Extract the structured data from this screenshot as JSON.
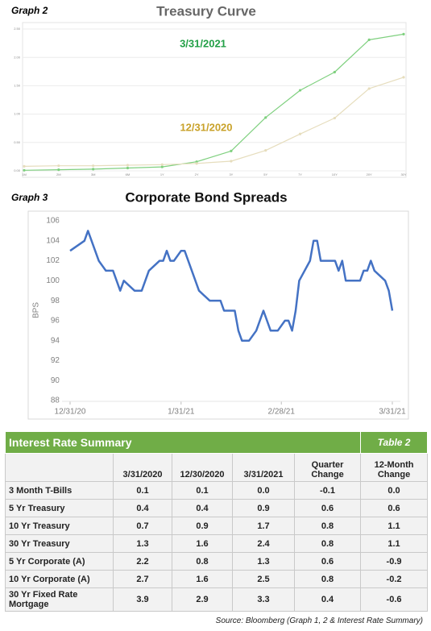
{
  "chart_data": [
    {
      "type": "line",
      "label": "Graph 2",
      "title": "Treasury Curve",
      "categories": [
        "1M",
        "2M",
        "3M",
        "6M",
        "1Y",
        "2Y",
        "3Y",
        "5Y",
        "7Y",
        "10Y",
        "20Y",
        "30Y"
      ],
      "series": [
        {
          "name": "3/31/2021",
          "color": "#7fd07f",
          "label_color": "#23a047",
          "values": [
            0.01,
            0.02,
            0.03,
            0.05,
            0.07,
            0.16,
            0.35,
            0.94,
            1.42,
            1.74,
            2.31,
            2.41
          ]
        },
        {
          "name": "12/31/2020",
          "color": "#e6ddbd",
          "label_color": "#c9a22a",
          "values": [
            0.08,
            0.09,
            0.09,
            0.1,
            0.11,
            0.13,
            0.17,
            0.36,
            0.65,
            0.93,
            1.45,
            1.65
          ]
        }
      ],
      "ylim": [
        0,
        2.6
      ],
      "yticks": [
        {
          "value": 0,
          "label": "0.00"
        },
        {
          "value": 0.5,
          "label": "0.50"
        },
        {
          "value": 1,
          "label": "1.00"
        },
        {
          "value": 1.5,
          "label": "1.50"
        },
        {
          "value": 2,
          "label": "2.00"
        },
        {
          "value": 2.5,
          "label": "2.50"
        }
      ],
      "grid": true
    },
    {
      "type": "line",
      "label": "Graph 3",
      "title": "Corporate Bond Spreads",
      "y_label": "BPS",
      "x": [
        "12/31/20",
        "1/4/21",
        "1/5/21",
        "1/8/21",
        "1/10/21",
        "1/12/21",
        "1/14/21",
        "1/15/21",
        "1/18/21",
        "1/20/21",
        "1/22/21",
        "1/25/21",
        "1/26/21",
        "1/27/21",
        "1/28/21",
        "1/29/21",
        "1/31/21",
        "2/1/21",
        "2/3/21",
        "2/5/21",
        "2/8/21",
        "2/11/21",
        "2/12/21",
        "2/15/21",
        "2/16/21",
        "2/17/21",
        "2/19/21",
        "2/21/21",
        "2/23/21",
        "2/25/21",
        "2/27/21",
        "3/1/21",
        "3/2/21",
        "3/3/21",
        "3/4/21",
        "3/5/21",
        "3/8/21",
        "3/9/21",
        "3/10/21",
        "3/11/21",
        "3/15/21",
        "3/16/21",
        "3/17/21",
        "3/18/21",
        "3/22/21",
        "3/23/21",
        "3/24/21",
        "3/25/21",
        "3/26/21",
        "3/29/21",
        "3/30/21",
        "3/31/21"
      ],
      "values": [
        103,
        104,
        105,
        102,
        101,
        101,
        99,
        100,
        99,
        99,
        101,
        102,
        102,
        103,
        102,
        102,
        103,
        103,
        101,
        99,
        98,
        98,
        97,
        97,
        95,
        94,
        94,
        95,
        97,
        95,
        95,
        96,
        96,
        95,
        97,
        100,
        102,
        104,
        104,
        102,
        102,
        101,
        102,
        100,
        100,
        101,
        101,
        102,
        101,
        100,
        99,
        97
      ],
      "color": "#4472c4",
      "xlim": [
        "12/31/20",
        "3/31/21"
      ],
      "xticks": [
        "12/31/20",
        "1/31/21",
        "2/28/21",
        "3/31/21"
      ],
      "ylim": [
        88,
        106
      ],
      "yticks": [
        88,
        90,
        92,
        94,
        96,
        98,
        100,
        102,
        104,
        106
      ]
    }
  ],
  "table": {
    "title": "Interest Rate Summary",
    "label": "Table 2",
    "columns": [
      "3/31/2020",
      "12/30/2020",
      "3/31/2021",
      "Quarter Change",
      "12-Month Change"
    ],
    "rows": [
      [
        "3 Month T-Bills",
        "0.1",
        "0.1",
        "0.0",
        "-0.1",
        "0.0"
      ],
      [
        "5 Yr Treasury",
        "0.4",
        "0.4",
        "0.9",
        "0.6",
        "0.6"
      ],
      [
        "10 Yr Treasury",
        "0.7",
        "0.9",
        "1.7",
        "0.8",
        "1.1"
      ],
      [
        "30 Yr Treasury",
        "1.3",
        "1.6",
        "2.4",
        "0.8",
        "1.1"
      ],
      [
        "5 Yr Corporate (A)",
        "2.2",
        "0.8",
        "1.3",
        "0.6",
        "-0.9"
      ],
      [
        "10 Yr Corporate (A)",
        "2.7",
        "1.6",
        "2.5",
        "0.8",
        "-0.2"
      ],
      [
        "30 Yr Fixed Rate Mortgage",
        "3.9",
        "2.9",
        "3.3",
        "0.4",
        "-0.6"
      ]
    ]
  },
  "source": "Source: Bloomberg (Graph 1, 2 & Interest Rate Summary)"
}
